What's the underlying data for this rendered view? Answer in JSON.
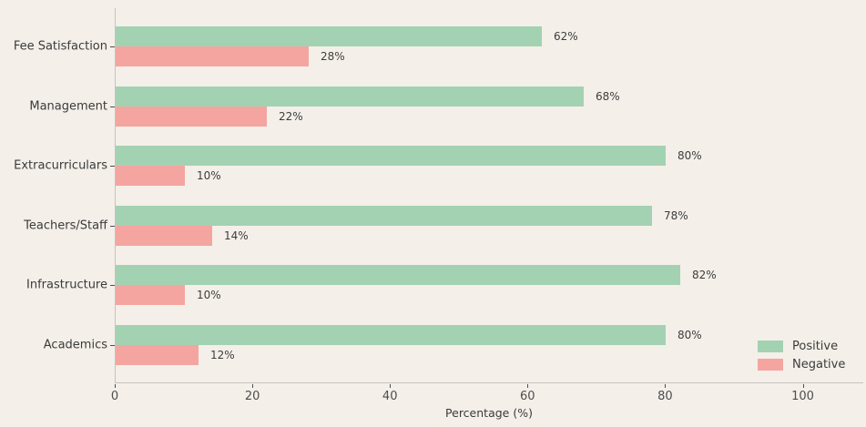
{
  "figure": {
    "background_color": "#f4efe9",
    "spine_color": "#c6c2bc",
    "text_color": "#3b3b3b",
    "tick_color": "#4d4d4d"
  },
  "chart_data": {
    "type": "bar",
    "orientation": "horizontal",
    "title": "",
    "categories": [
      "Fee Satisfaction",
      "Management",
      "Extracurriculars",
      "Teachers/Staff",
      "Infrastructure",
      "Academics"
    ],
    "series": [
      {
        "name": "Positive",
        "color": "#a3d2b3",
        "values": [
          62,
          68,
          80,
          78,
          82,
          80
        ]
      },
      {
        "name": "Negative",
        "color": "#f4a5a0",
        "values": [
          28,
          22,
          10,
          14,
          10,
          12
        ]
      }
    ],
    "value_label_suffix": "%",
    "value_labels": {
      "Positive": [
        "62%",
        "68%",
        "80%",
        "78%",
        "82%",
        "80%"
      ],
      "Negative": [
        "28%",
        "22%",
        "10%",
        "14%",
        "10%",
        "12%"
      ]
    },
    "xlabel": "Percentage (%)",
    "x_ticks": [
      0,
      20,
      40,
      60,
      80,
      100
    ],
    "xlim": [
      0,
      108.8
    ],
    "grid": false,
    "legend_position": "lower right"
  }
}
